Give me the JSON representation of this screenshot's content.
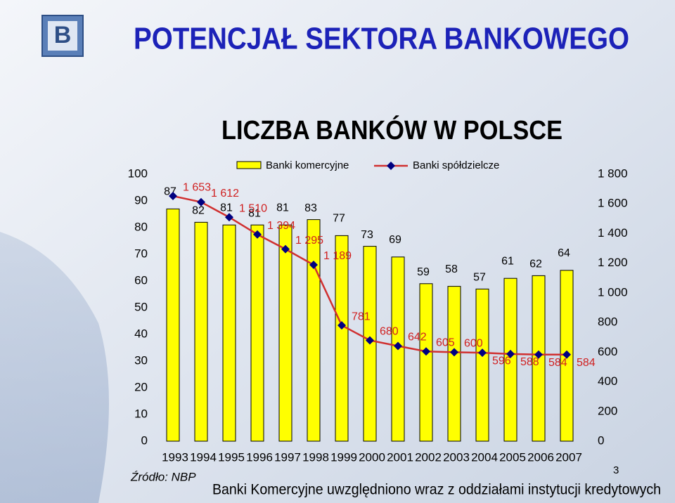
{
  "chart_data": {
    "type": "bar_line",
    "title": "POTENCJAŁ SEKTORA BANKOWEGO",
    "subtitle": "LICZBA BANKÓW W POLSCE",
    "categories": [
      "1993",
      "1994",
      "1995",
      "1996",
      "1997",
      "1998",
      "1999",
      "2000",
      "2001",
      "2002",
      "2003",
      "2004",
      "2005",
      "2006",
      "2007"
    ],
    "series": [
      {
        "name": "Banki komercyjne",
        "color": "#ffff00",
        "values": [
          87,
          82,
          81,
          81,
          81,
          83,
          77,
          73,
          69,
          59,
          58,
          57,
          61,
          62,
          64
        ]
      },
      {
        "name": "Banki spółdzielcze",
        "color": "#d03030",
        "marker_color": "#000080",
        "axis": "y2",
        "values": [
          1653,
          1612,
          1510,
          1394,
          1295,
          1189,
          781,
          680,
          642,
          605,
          600,
          596,
          588,
          584,
          584
        ],
        "value_labels": [
          "1 653",
          "1 612",
          "1 510",
          "1 394",
          "1 295",
          "1 189",
          "781",
          "680",
          "642",
          "605",
          "600",
          "596",
          "588",
          "584",
          "584"
        ]
      }
    ],
    "ylim": [
      0,
      100
    ],
    "yticks": [
      0,
      10,
      20,
      30,
      40,
      50,
      60,
      70,
      80,
      90,
      100
    ],
    "y2lim": [
      0,
      1800
    ],
    "y2ticks": [
      0,
      200,
      400,
      600,
      800,
      {
        "value": 1000,
        "label": "1 000"
      },
      {
        "value": 1200,
        "label": "1 200"
      },
      {
        "value": 1400,
        "label": "1 400"
      },
      {
        "value": 1600,
        "label": "1 600"
      },
      {
        "value": 1800,
        "label": "1 800"
      }
    ],
    "source": "Źródło: NBP",
    "footnote": "Banki Komercyjne uwzględniono wraz z oddziałami instytucji kredytowych",
    "page_number": "3"
  }
}
